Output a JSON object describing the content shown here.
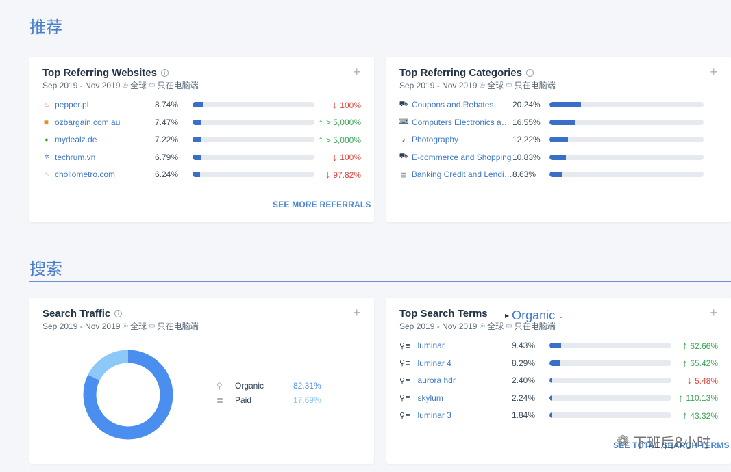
{
  "sections": {
    "recommend": "推荐",
    "search": "搜索"
  },
  "common": {
    "date_range": "Sep 2019 - Nov 2019",
    "region": "全球",
    "device": "只在电脑端"
  },
  "referring_websites": {
    "title": "Top Referring Websites",
    "rows": [
      {
        "name": "pepper.pl",
        "icon": "flame-icon",
        "pct": "8.74%",
        "fill": 0.0874,
        "change": "100%",
        "dir": "down"
      },
      {
        "name": "ozbargain.com.au",
        "icon": "ozbargain-icon",
        "pct": "7.47%",
        "fill": 0.0747,
        "change": "> 5,000%",
        "dir": "up"
      },
      {
        "name": "mydealz.de",
        "icon": "mydealz-icon",
        "pct": "7.22%",
        "fill": 0.0722,
        "change": "> 5,000%",
        "dir": "up"
      },
      {
        "name": "techrum.vn",
        "icon": "techrum-icon",
        "pct": "6.79%",
        "fill": 0.0679,
        "change": "100%",
        "dir": "down"
      },
      {
        "name": "chollometro.com",
        "icon": "flame-icon",
        "pct": "6.24%",
        "fill": 0.0624,
        "change": "97.82%",
        "dir": "down"
      }
    ],
    "see_more": "SEE MORE REFERRALS"
  },
  "referring_categories": {
    "title": "Top Referring Categories",
    "rows": [
      {
        "name": "Coupons and Rebates",
        "icon": "cart-icon",
        "pct": "20.24%",
        "fill": 0.2024
      },
      {
        "name": "Computers Electronics an...",
        "icon": "laptop-icon",
        "pct": "16.55%",
        "fill": 0.1655
      },
      {
        "name": "Photography",
        "icon": "guitar-icon",
        "pct": "12.22%",
        "fill": 0.1222
      },
      {
        "name": "E-commerce and Shopping",
        "icon": "cart-icon",
        "pct": "10.83%",
        "fill": 0.1083
      },
      {
        "name": "Banking Credit and Lending",
        "icon": "wallet-icon",
        "pct": "8.63%",
        "fill": 0.0863
      }
    ]
  },
  "search_traffic": {
    "title": "Search Traffic",
    "legend": [
      {
        "label": "Organic",
        "value": "82.31%",
        "color": "#4a8ef0",
        "icon": "search-icon"
      },
      {
        "label": "Paid",
        "value": "17.69%",
        "color": "#8cc8f8",
        "icon": "paid-icon"
      }
    ]
  },
  "chart_data": {
    "type": "pie",
    "categories": [
      "Organic",
      "Paid"
    ],
    "values": [
      82.31,
      17.69
    ],
    "colors": [
      "#4a8ef0",
      "#8cc8f8"
    ]
  },
  "search_terms": {
    "title": "Top Search Terms",
    "dropdown": "Organic",
    "rows": [
      {
        "term": "luminar",
        "pct": "9.43%",
        "fill": 0.0943,
        "change": "62.66%",
        "dir": "up"
      },
      {
        "term": "luminar 4",
        "pct": "8.29%",
        "fill": 0.0829,
        "change": "65.42%",
        "dir": "up"
      },
      {
        "term": "aurora hdr",
        "pct": "2.40%",
        "fill": 0.024,
        "change": "5.48%",
        "dir": "down"
      },
      {
        "term": "skylum",
        "pct": "2.24%",
        "fill": 0.0224,
        "change": "110.13%",
        "dir": "up"
      },
      {
        "term": "luminar 3",
        "pct": "1.84%",
        "fill": 0.0184,
        "change": "43.32%",
        "dir": "up"
      }
    ],
    "see_more": "SEE TOTAL SEARCH TERMS"
  },
  "watermark": "下班后8小时"
}
